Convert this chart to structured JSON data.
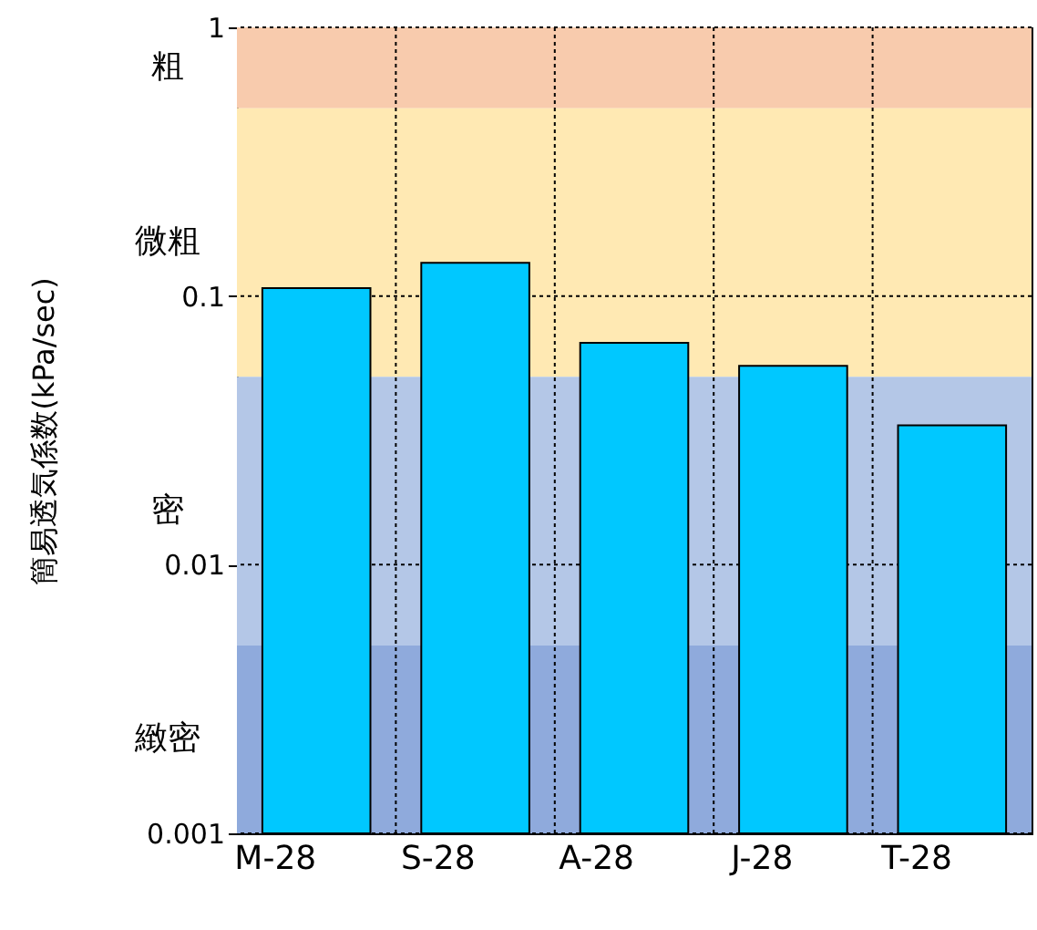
{
  "chart_data": {
    "type": "bar",
    "ylabel": "簡易透気係数(kPa/sec)",
    "categories": [
      "M-28",
      "S-28",
      "A-28",
      "J-28",
      "T-28"
    ],
    "values": [
      0.107,
      0.133,
      0.067,
      0.055,
      0.033
    ],
    "color": "#00c8ff",
    "log": true,
    "ylim": [
      0.001,
      1
    ],
    "yticks": [
      0.001,
      0.01,
      0.1,
      1
    ],
    "grid": true,
    "bands": [
      {
        "axis": "y",
        "from": 0.5,
        "to": 1,
        "label": "粗",
        "color": "#f8cbad"
      },
      {
        "axis": "y",
        "from": 0.05,
        "to": 0.5,
        "label": "微粗",
        "color": "#ffe9b3"
      },
      {
        "axis": "y",
        "from": 0.005,
        "to": 0.05,
        "label": "密",
        "color": "#b4c7e7"
      },
      {
        "axis": "y",
        "from": 0.001,
        "to": 0.005,
        "label": "緻密",
        "color": "#8faadc"
      }
    ]
  }
}
